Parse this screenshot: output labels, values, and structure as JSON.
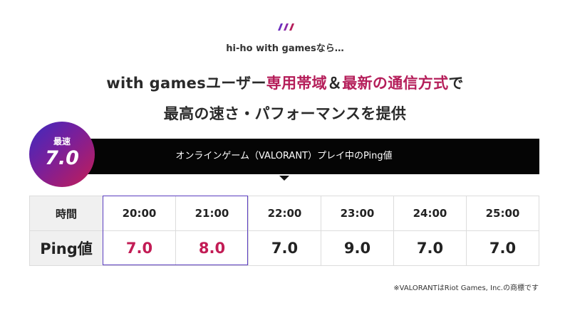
{
  "intro": "hi-ho with gamesなら…",
  "headline": {
    "line1_part1": "with gamesユーザー",
    "line1_accent1": "専用帯域",
    "line1_part2": "＆",
    "line1_accent2": "最新の通信方式",
    "line1_part3": "で",
    "line2": "最高の速さ・パフォーマンスを提供"
  },
  "badge": {
    "label": "最速",
    "value": "7.0"
  },
  "banner": {
    "text": "オンラインゲーム（VALORANT）プレイ中のPing値"
  },
  "table": {
    "time_header": "時間",
    "ping_header": "Ping値",
    "times": [
      "20:00",
      "21:00",
      "22:00",
      "23:00",
      "24:00",
      "25:00"
    ],
    "pings": [
      "7.0",
      "8.0",
      "7.0",
      "9.0",
      "7.0",
      "7.0"
    ]
  },
  "footnote": "※VALORANTはRiot Games, Inc.の商標です",
  "colors": {
    "accent": "#b51e5a",
    "highlight_border": "#5a3dc0",
    "banner_bg": "#050505"
  }
}
